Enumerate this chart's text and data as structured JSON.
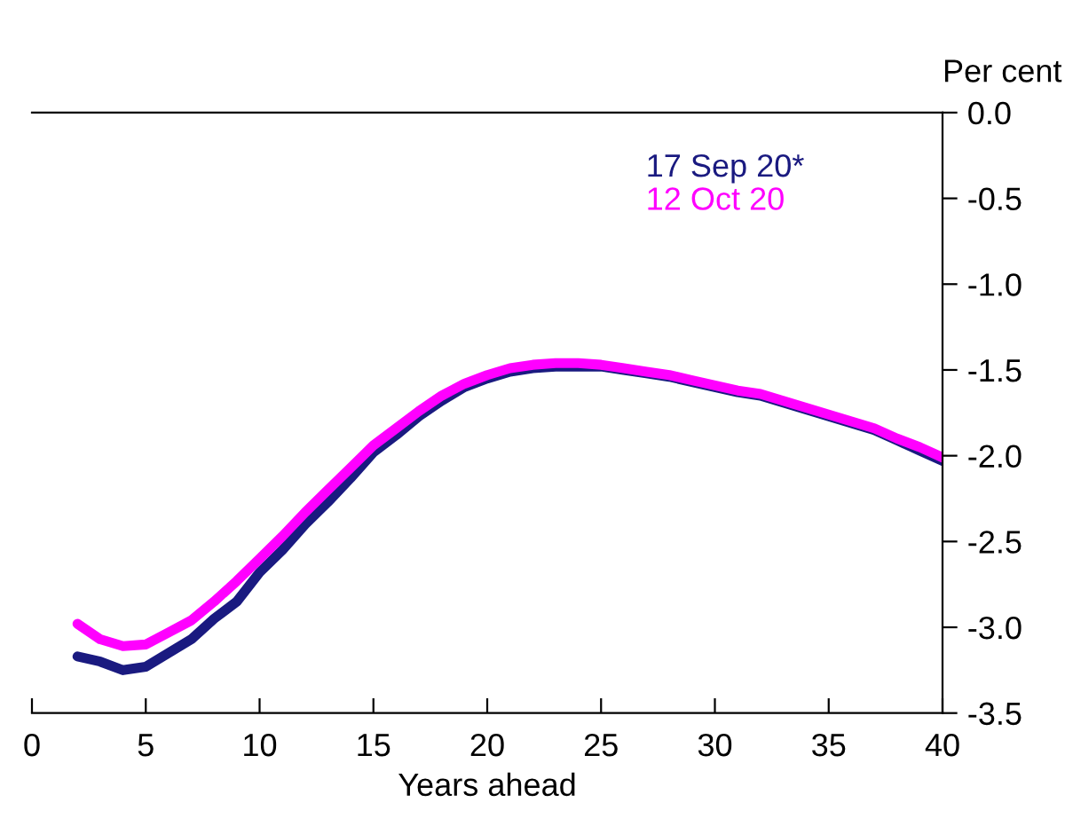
{
  "chart_data": {
    "type": "line",
    "xlabel": "Years ahead",
    "ylabel": "Per cent",
    "x": [
      2,
      3,
      4,
      5,
      6,
      7,
      8,
      9,
      10,
      11,
      12,
      13,
      14,
      15,
      16,
      17,
      18,
      19,
      20,
      21,
      22,
      23,
      24,
      25,
      26,
      27,
      28,
      29,
      30,
      31,
      32,
      33,
      34,
      35,
      36,
      37,
      38,
      39,
      40
    ],
    "series": [
      {
        "name": "17 Sep 20*",
        "color": "#1a1a80",
        "values": [
          -3.17,
          -3.2,
          -3.25,
          -3.23,
          -3.15,
          -3.07,
          -2.95,
          -2.85,
          -2.68,
          -2.55,
          -2.4,
          -2.27,
          -2.13,
          -1.98,
          -1.88,
          -1.77,
          -1.68,
          -1.6,
          -1.55,
          -1.51,
          -1.49,
          -1.48,
          -1.48,
          -1.48,
          -1.5,
          -1.52,
          -1.54,
          -1.57,
          -1.6,
          -1.63,
          -1.65,
          -1.69,
          -1.73,
          -1.77,
          -1.81,
          -1.85,
          -1.91,
          -1.97,
          -2.03
        ]
      },
      {
        "name": "12 Oct 20",
        "color": "#ff00ff",
        "values": [
          -2.98,
          -3.07,
          -3.11,
          -3.1,
          -3.03,
          -2.96,
          -2.85,
          -2.73,
          -2.6,
          -2.47,
          -2.33,
          -2.2,
          -2.07,
          -1.94,
          -1.84,
          -1.74,
          -1.65,
          -1.58,
          -1.53,
          -1.49,
          -1.47,
          -1.46,
          -1.46,
          -1.47,
          -1.49,
          -1.51,
          -1.53,
          -1.56,
          -1.59,
          -1.62,
          -1.64,
          -1.68,
          -1.72,
          -1.76,
          -1.8,
          -1.84,
          -1.9,
          -1.95,
          -2.01
        ]
      }
    ],
    "xlim": [
      0,
      40
    ],
    "xticks": [
      0,
      5,
      10,
      15,
      20,
      25,
      30,
      35,
      40
    ],
    "ylim": [
      -3.5,
      0
    ],
    "yticks": [
      {
        "value": 0,
        "label": "0.0"
      },
      {
        "value": -0.5,
        "label": "-0.5"
      },
      {
        "value": -1,
        "label": "-1.0"
      },
      {
        "value": -1.5,
        "label": "-1.5"
      },
      {
        "value": -2,
        "label": "-2.0"
      },
      {
        "value": -2.5,
        "label": "-2.5"
      },
      {
        "value": -3,
        "label": "-3.0"
      },
      {
        "value": -3.5,
        "label": "-3.5"
      }
    ],
    "grid": false,
    "legend": "top right",
    "marker": "none",
    "line_style": "solid"
  }
}
